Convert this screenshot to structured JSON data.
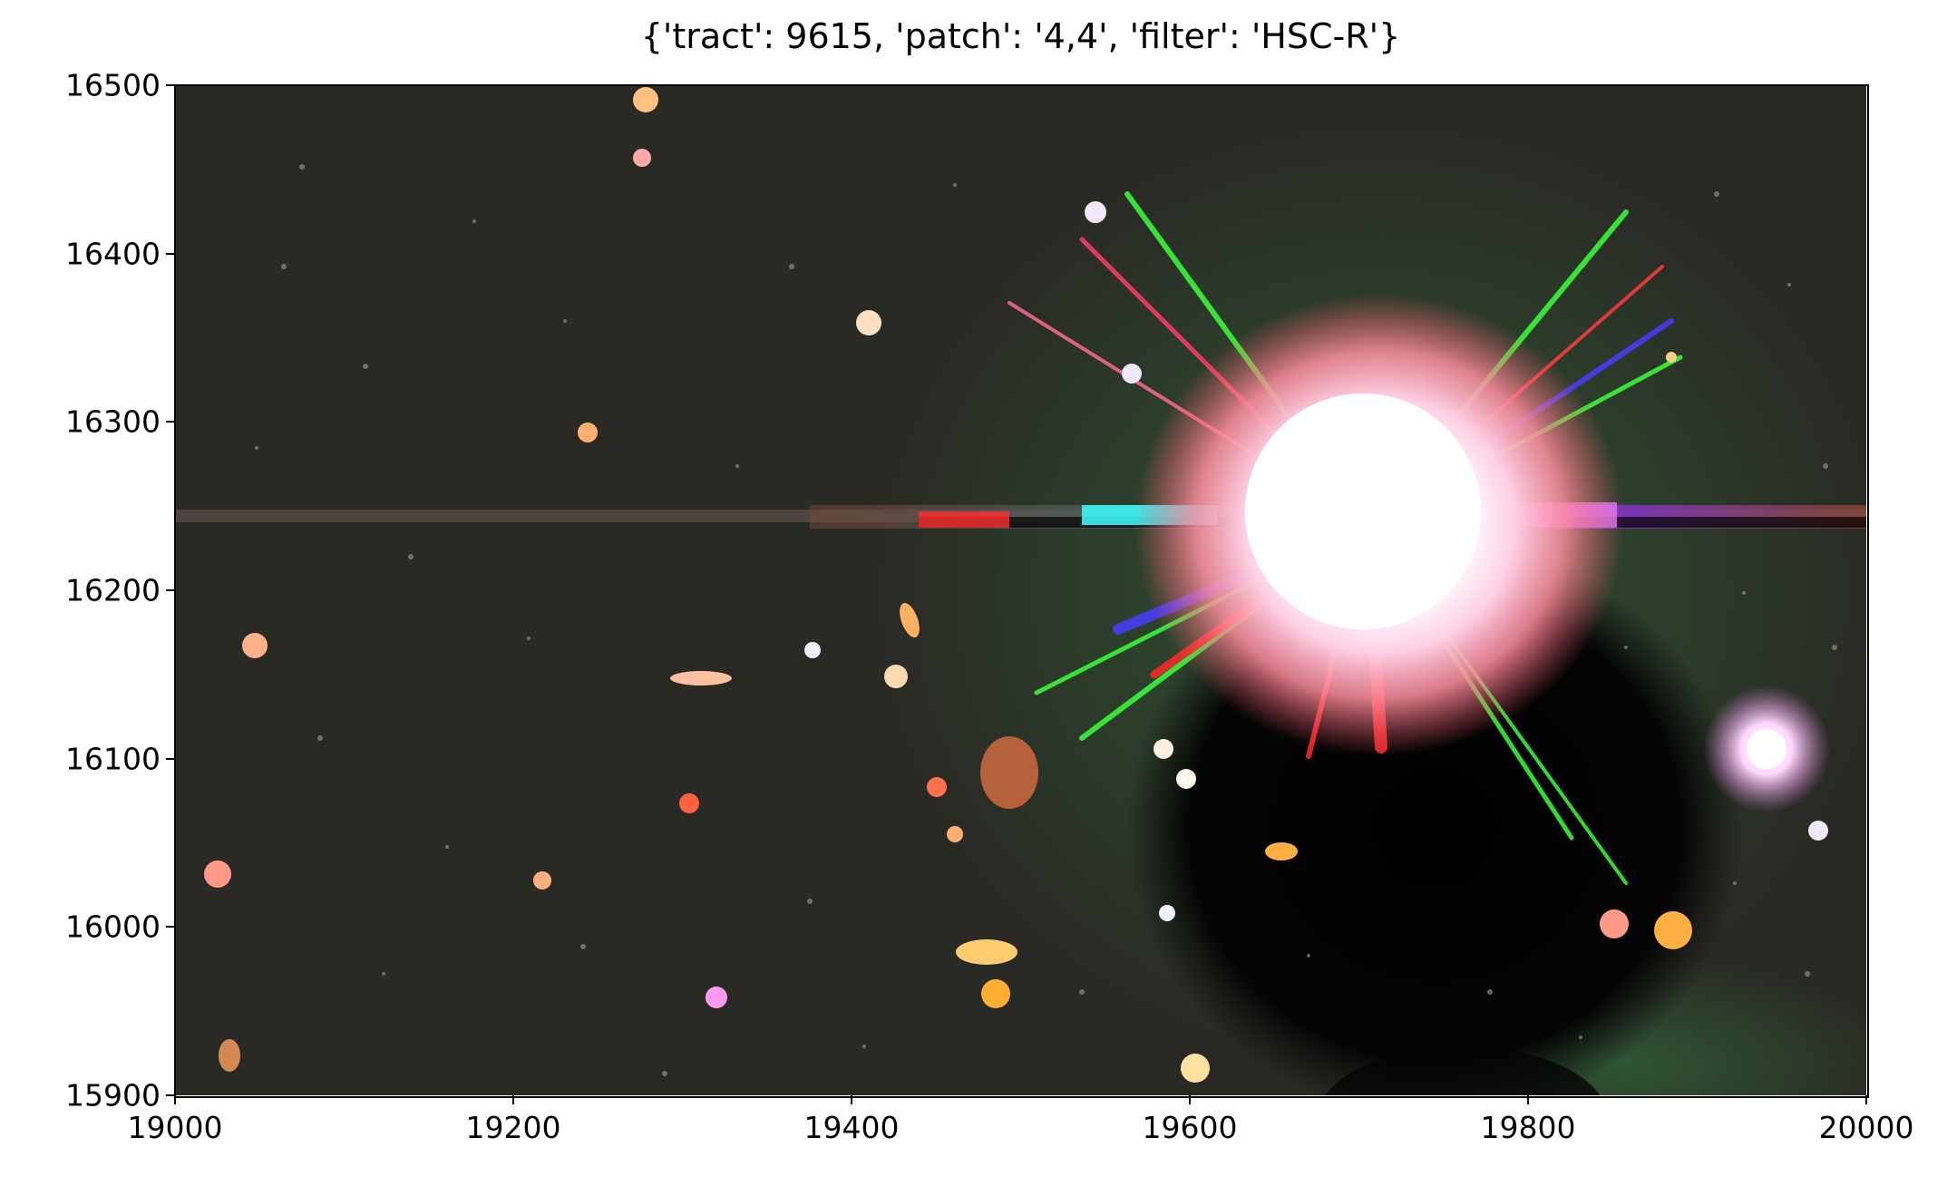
{
  "title": "{'tract': 9615, 'patch': '4,4', 'filter': 'HSC-R'}",
  "image": {
    "subject": "astronomical-rgb-cutout",
    "background_color": "#2a2a24"
  },
  "axes": {
    "x": {
      "min": 19000,
      "max": 20000,
      "ticks": [
        19000,
        19200,
        19400,
        19600,
        19800,
        20000
      ],
      "tick_labels": [
        "19000",
        "19200",
        "19400",
        "19600",
        "19800",
        "20000"
      ]
    },
    "y": {
      "min": 15900,
      "max": 16500,
      "ticks": [
        15900,
        16000,
        16100,
        16200,
        16300,
        16400,
        16500
      ],
      "tick_labels": [
        "15900",
        "16000",
        "16100",
        "16200",
        "16300",
        "16400",
        "16500"
      ]
    }
  }
}
